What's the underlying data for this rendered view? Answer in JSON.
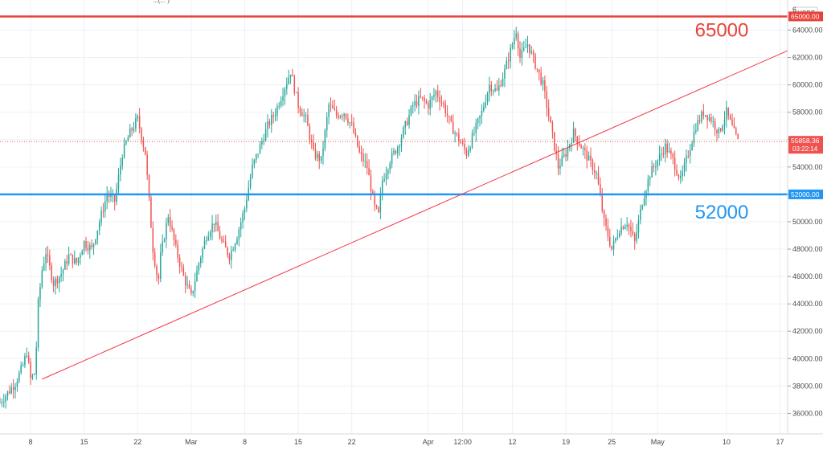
{
  "chart_data": {
    "type": "candlestick",
    "title": "",
    "xlabel": "",
    "ylabel": "",
    "currency": "USDT",
    "ylim": [
      34500,
      66200
    ],
    "y_ticks": [
      36000,
      38000,
      40000,
      42000,
      44000,
      46000,
      48000,
      50000,
      52000,
      54000,
      56000,
      58000,
      60000,
      62000,
      64000
    ],
    "y_tick_labels": [
      "36000.00",
      "38000.00",
      "40000.00",
      "42000.00",
      "44000.00",
      "46000.00",
      "48000.00",
      "50000.00",
      "52000.00",
      "54000.00",
      "56000.00",
      "58000.00",
      "60000.00",
      "62000.00",
      "64000.00"
    ],
    "x_ticks": [
      {
        "label": "8",
        "day": 8
      },
      {
        "label": "15",
        "day": 15
      },
      {
        "label": "22",
        "day": 22
      },
      {
        "label": "Mar",
        "day": 29
      },
      {
        "label": "8",
        "day": 36
      },
      {
        "label": "15",
        "day": 43
      },
      {
        "label": "22",
        "day": 50
      },
      {
        "label": "Apr",
        "day": 60
      },
      {
        "label": "12:00",
        "day": 64.5
      },
      {
        "label": "12",
        "day": 71
      },
      {
        "label": "19",
        "day": 78
      },
      {
        "label": "25",
        "day": 84
      },
      {
        "label": "May",
        "day": 90
      },
      {
        "label": "10",
        "day": 99
      },
      {
        "label": "17",
        "day": 106
      }
    ],
    "x_range": [
      4,
      107
    ],
    "close_path": [
      [
        4,
        36800
      ],
      [
        5,
        37500
      ],
      [
        6,
        38200
      ],
      [
        7,
        39500
      ],
      [
        7.5,
        40500
      ],
      [
        8,
        38500
      ],
      [
        8.6,
        39000
      ],
      [
        9,
        44000
      ],
      [
        9.5,
        46500
      ],
      [
        10,
        47800
      ],
      [
        11,
        45500
      ],
      [
        12,
        46200
      ],
      [
        13,
        47500
      ],
      [
        14,
        47000
      ],
      [
        15,
        48500
      ],
      [
        16,
        48000
      ],
      [
        17,
        50000
      ],
      [
        18,
        52000
      ],
      [
        19,
        51500
      ],
      [
        20,
        55000
      ],
      [
        21,
        56500
      ],
      [
        22,
        57500
      ],
      [
        23,
        55000
      ],
      [
        24,
        48000
      ],
      [
        24.7,
        45500
      ],
      [
        25,
        47500
      ],
      [
        26,
        50500
      ],
      [
        27,
        48000
      ],
      [
        28,
        46000
      ],
      [
        29,
        44500
      ],
      [
        30,
        47000
      ],
      [
        31,
        49000
      ],
      [
        32,
        50000
      ],
      [
        33,
        48500
      ],
      [
        34,
        47500
      ],
      [
        35,
        49000
      ],
      [
        36,
        51000
      ],
      [
        37,
        54000
      ],
      [
        38,
        55500
      ],
      [
        39,
        57000
      ],
      [
        40,
        58000
      ],
      [
        41,
        59500
      ],
      [
        42,
        61000
      ],
      [
        43,
        58500
      ],
      [
        44,
        57500
      ],
      [
        45,
        55000
      ],
      [
        46,
        54500
      ],
      [
        47,
        58500
      ],
      [
        48,
        57800
      ],
      [
        49,
        58000
      ],
      [
        50,
        57000
      ],
      [
        51,
        55000
      ],
      [
        52,
        54000
      ],
      [
        53,
        51000
      ],
      [
        53.5,
        50500
      ],
      [
        54,
        53000
      ],
      [
        55,
        54500
      ],
      [
        56,
        55500
      ],
      [
        57,
        57000
      ],
      [
        58,
        58500
      ],
      [
        59,
        59000
      ],
      [
        60,
        58500
      ],
      [
        61,
        59500
      ],
      [
        62,
        58500
      ],
      [
        63,
        57000
      ],
      [
        64,
        56000
      ],
      [
        65,
        55000
      ],
      [
        66,
        56500
      ],
      [
        67,
        58000
      ],
      [
        68,
        60000
      ],
      [
        69,
        59500
      ],
      [
        70,
        61000
      ],
      [
        71,
        63000
      ],
      [
        71.5,
        64000
      ],
      [
        72,
        62000
      ],
      [
        73,
        63000
      ],
      [
        74,
        61500
      ],
      [
        75,
        60000
      ],
      [
        76,
        57000
      ],
      [
        77,
        54000
      ],
      [
        78,
        55000
      ],
      [
        79,
        56500
      ],
      [
        80,
        55500
      ],
      [
        81,
        54500
      ],
      [
        82,
        53500
      ],
      [
        83,
        50000
      ],
      [
        84,
        48000
      ],
      [
        85,
        49500
      ],
      [
        86,
        50000
      ],
      [
        87,
        48500
      ],
      [
        88,
        51500
      ],
      [
        89,
        53500
      ],
      [
        90,
        54500
      ],
      [
        91,
        55500
      ],
      [
        92,
        54500
      ],
      [
        93,
        53000
      ],
      [
        94,
        55000
      ],
      [
        95,
        57000
      ],
      [
        96,
        58000
      ],
      [
        97,
        57500
      ],
      [
        98,
        56500
      ],
      [
        99,
        58000
      ],
      [
        100,
        56500
      ],
      [
        100.5,
        55858
      ]
    ],
    "horizontal_levels": [
      {
        "value": 65000,
        "label": "65000.00",
        "annotation": "65000",
        "color": "#e8423b"
      },
      {
        "value": 52000,
        "label": "52000.00",
        "annotation": "52000",
        "color": "#2196f3"
      }
    ],
    "trendline": {
      "from": {
        "day": 9.5,
        "value": 38500
      },
      "to": {
        "day": 107,
        "value": 62500
      },
      "color": "#f23645"
    },
    "last_price": {
      "value": 55858.36,
      "label": "55858.36",
      "countdown": "03:22:14",
      "color": "#ef5350"
    },
    "top_partial_tick": "6",
    "top_partial_text": "...(... )",
    "colors": {
      "up": "#26a69a",
      "down": "#ef5350",
      "grid": "#eef0f4",
      "axis": "#4a4a4a"
    }
  }
}
